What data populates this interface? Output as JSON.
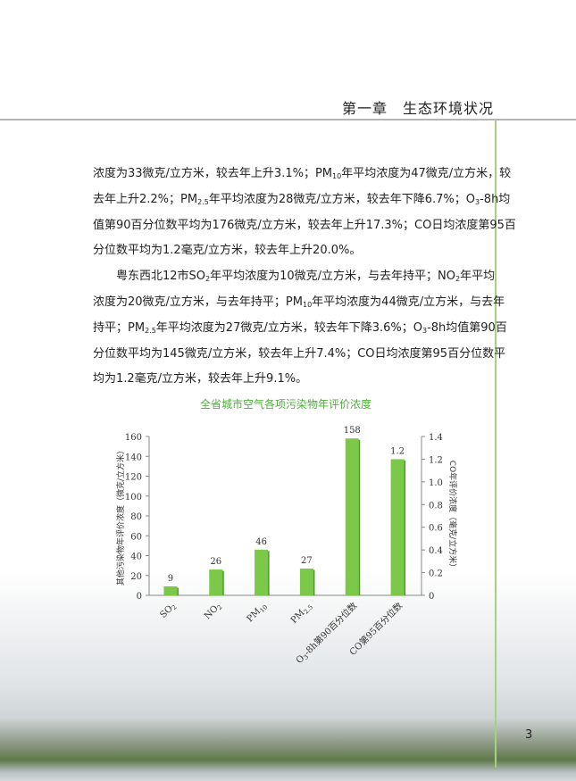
{
  "header": {
    "chapter": "第一章　生态环境状况"
  },
  "page_number": "3",
  "paragraphs": [
    {
      "indent": false,
      "lines": [
        [
          {
            "t": "浓度为33微克/立方米，较去年上升3.1%；PM"
          },
          {
            "sub": "10"
          },
          {
            "t": "年平均浓度为47微克/立方米，较"
          }
        ],
        [
          {
            "t": "去年上升2.2%；PM"
          },
          {
            "sub": "2.5"
          },
          {
            "t": "年平均浓度为28微克/立方米，较去年下降6.7%；O"
          },
          {
            "sub": "3"
          },
          {
            "t": "-8h均"
          }
        ],
        [
          {
            "t": "值第90百分位数平均为176微克/立方米，较去年上升17.3%；CO日均浓度第95百"
          }
        ],
        [
          {
            "t": "分位数平均为1.2毫克/立方米，较去年上升20.0%。"
          }
        ]
      ]
    },
    {
      "indent": true,
      "lines": [
        [
          {
            "t": "粤东西北12市SO"
          },
          {
            "sub": "2"
          },
          {
            "t": "年平均浓度为10微克/立方米，与去年持平；NO"
          },
          {
            "sub": "2"
          },
          {
            "t": "年平均"
          }
        ],
        [
          {
            "t": "浓度为20微克/立方米，与去年持平；PM"
          },
          {
            "sub": "10"
          },
          {
            "t": "年平均浓度为44微克/立方米，与去年"
          }
        ],
        [
          {
            "t": "持平；PM"
          },
          {
            "sub": "2.5"
          },
          {
            "t": "年平均浓度为27微克/立方米，较去年下降3.6%；O"
          },
          {
            "sub": "3"
          },
          {
            "t": "-8h均值第90百"
          }
        ],
        [
          {
            "t": "分位数平均为145微克/立方米，较去年上升7.4%；CO日均浓度第95百分位数平"
          }
        ],
        [
          {
            "t": "均为1.2毫克/立方米，较去年上升9.1%。"
          }
        ]
      ]
    }
  ],
  "colors": {
    "bar": "#7cc94a",
    "bar_dark": "#4f9a2a",
    "title": "#4cae3a",
    "accent_line": "#a6d17e"
  },
  "chart_data": {
    "type": "bar",
    "title": "全省城市空气各项污染物年评价浓度",
    "ylabel": "其他污染物年评价浓度（微克/立方米）",
    "y2label": "CO年评价浓度（毫克/立方米）",
    "ylim": [
      0,
      160
    ],
    "y2lim": [
      0,
      1.4
    ],
    "yticks": [
      "0",
      "20",
      "40",
      "60",
      "80",
      "100",
      "120",
      "140",
      "160"
    ],
    "y2ticks": [
      "0",
      "0.2",
      "0.4",
      "0.6",
      "0.8",
      "1.0",
      "1.2",
      "1.4"
    ],
    "categories": [
      [
        {
          "t": "SO"
        },
        {
          "sub": "2"
        }
      ],
      [
        {
          "t": "NO"
        },
        {
          "sub": "2"
        }
      ],
      [
        {
          "t": "PM"
        },
        {
          "sub": "10"
        }
      ],
      [
        {
          "t": "PM"
        },
        {
          "sub": "2.5"
        }
      ],
      [
        {
          "t": "O"
        },
        {
          "sub": "3"
        },
        {
          "t": "-8h第90百分位数"
        }
      ],
      [
        {
          "t": "CO第95百分位数"
        }
      ]
    ],
    "values": [
      9,
      26,
      46,
      27,
      158,
      1.2
    ],
    "value_labels": [
      "9",
      "26",
      "46",
      "27",
      "158",
      "1.2"
    ],
    "axis": [
      "left",
      "left",
      "left",
      "left",
      "left",
      "right"
    ],
    "grid": false,
    "legend": "none"
  }
}
